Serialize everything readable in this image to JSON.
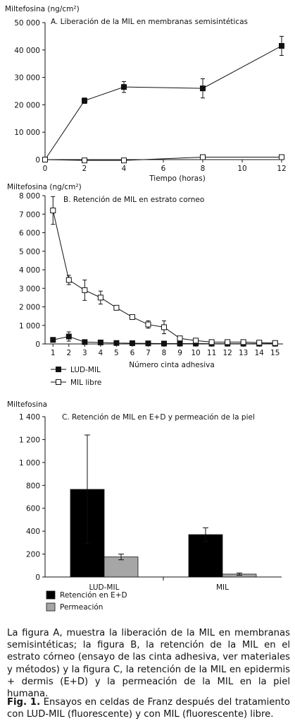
{
  "chart_data": [
    {
      "id": "A",
      "type": "line",
      "title": "A. Liberación de la MIL en membranas semisintéticas",
      "ylabel": "Miltefosina (ng/cm²)",
      "xlabel": "Tiempo (horas)",
      "x": [
        0,
        2,
        4,
        8,
        12
      ],
      "xlim": [
        0,
        12
      ],
      "xticks": [
        "0",
        "2",
        "4",
        "6",
        "8",
        "10",
        "12"
      ],
      "ylim": [
        0,
        50000
      ],
      "yticks": [
        "0",
        "10 000",
        "20 000",
        "30 000",
        "40 000",
        "50 000"
      ],
      "series": [
        {
          "key": "lud",
          "values": [
            0,
            21500,
            26500,
            26000,
            41500
          ],
          "errors": [
            0,
            1000,
            2000,
            3500,
            3500
          ],
          "marker": "filled-square"
        },
        {
          "key": "free",
          "values": [
            0,
            -300,
            -300,
            900,
            900
          ],
          "errors": [
            0,
            0,
            0,
            0,
            0
          ],
          "marker": "open-square"
        }
      ]
    },
    {
      "id": "B",
      "type": "line",
      "title": "B. Retención de MIL en estrato corneo",
      "ylabel": "Miltefosina (ng/cm²)",
      "xlabel": "Número cinta adhesiva",
      "x": [
        1,
        2,
        3,
        4,
        5,
        6,
        7,
        8,
        9,
        10,
        11,
        12,
        13,
        14,
        15
      ],
      "xlim": [
        0.5,
        15.5
      ],
      "ylim": [
        0,
        8000
      ],
      "yticks": [
        "0",
        "1 000",
        "2 000",
        "3 000",
        "4 000",
        "5 000",
        "6 000",
        "7 000",
        "8 000"
      ],
      "legend": [
        {
          "label": "LUD-MIL",
          "marker": "filled-square"
        },
        {
          "label": "MIL libre",
          "marker": "open-square"
        }
      ],
      "series": [
        {
          "name": "LUD-MIL",
          "values": [
            220,
            400,
            100,
            80,
            50,
            40,
            30,
            20,
            20,
            20,
            15,
            15,
            15,
            15,
            15
          ],
          "errors": [
            0,
            250,
            0,
            0,
            0,
            0,
            0,
            0,
            0,
            0,
            0,
            0,
            0,
            0,
            0
          ],
          "marker": "filled-square"
        },
        {
          "name": "MIL libre",
          "values": [
            7200,
            3450,
            2900,
            2500,
            1950,
            1450,
            1050,
            900,
            300,
            180,
            100,
            100,
            100,
            70,
            50
          ],
          "errors": [
            750,
            250,
            550,
            350,
            100,
            0,
            200,
            350,
            50,
            0,
            0,
            0,
            0,
            0,
            0
          ],
          "marker": "open-square"
        }
      ]
    },
    {
      "id": "C",
      "type": "bar",
      "title": "C. Retención de MIL en E+D y permeación de la piel",
      "ylabel": "Miltefosina",
      "categories": [
        "LUD-MIL",
        "MIL"
      ],
      "ylim": [
        0,
        1400
      ],
      "yticks": [
        "0",
        "200",
        "400",
        "600",
        "800",
        "1 000",
        "1 200",
        "1 400"
      ],
      "legend": [
        {
          "label": "Retención en E+D",
          "color": "#000000"
        },
        {
          "label": "Permeación",
          "color": "#a6a6a6"
        }
      ],
      "series": [
        {
          "name": "Retención en E+D",
          "values": [
            765,
            370
          ],
          "errors": [
            475,
            60
          ],
          "color": "#000000"
        },
        {
          "name": "Permeación",
          "values": [
            175,
            25
          ],
          "errors": [
            25,
            10
          ],
          "color": "#a6a6a6"
        }
      ]
    }
  ],
  "text": {
    "paragraph": "La figura A, muestra la liberación de la MIL en membranas semisintéticas; la figura B, la retención de la MIL en el estrato córneo (ensayo de las cinta adhesiva, ver materiales y métodos) y la figura C, la retención de la MIL en epidermis + dermis (E+D) y la permeación de la MIL en la piel humana.",
    "fig_label": "Fig. 1.",
    "fig_caption": "Ensayos en celdas de Franz después del tratamiento con LUD-MIL (fluorescente) y con MIL (fluorescente) libre."
  }
}
